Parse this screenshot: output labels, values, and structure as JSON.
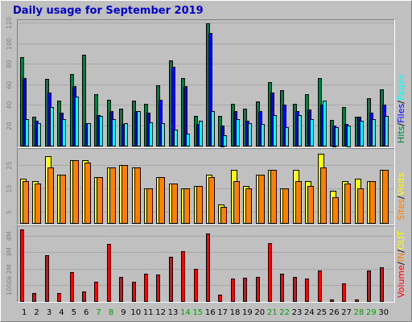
{
  "chart_data": {
    "title": "Daily usage for September 2019",
    "type": "bar",
    "days": [
      "1",
      "2",
      "3",
      "4",
      "5",
      "6",
      "7",
      "8",
      "9",
      "10",
      "11",
      "12",
      "13",
      "14",
      "15",
      "16",
      "17",
      "18",
      "19",
      "20",
      "21",
      "22",
      "23",
      "24",
      "25",
      "26",
      "27",
      "28",
      "29",
      "30"
    ],
    "weekend_days": [
      "7",
      "8",
      "14",
      "15",
      "21",
      "22",
      "28",
      "29"
    ],
    "panels": [
      {
        "id": "hits",
        "ylim": [
          0,
          120
        ],
        "yticks": [
          20,
          40,
          60,
          80,
          100,
          120
        ],
        "series": [
          {
            "name": "Hits",
            "color": "#008040",
            "values": [
              86,
              28,
              65,
              44,
              70,
              89,
              50,
              45,
              36,
              44,
              41,
              59,
              83,
              66,
              29,
              119,
              29,
              41,
              36,
              43,
              62,
              54,
              41,
              50,
              66,
              25,
              38,
              28,
              46,
              55
            ]
          },
          {
            "name": "Files",
            "color": "#0000ff",
            "values": [
              66,
              24,
              52,
              32,
              58,
              22,
              30,
              34,
              21,
              34,
              32,
              45,
              77,
              58,
              21,
              110,
              20,
              34,
              24,
              34,
              52,
              40,
              34,
              35,
              40,
              20,
              21,
              28,
              32,
              40
            ]
          },
          {
            "name": "Pages",
            "color": "#00ffff",
            "values": [
              26,
              22,
              38,
              26,
              48,
              22,
              29,
              26,
              22,
              34,
              23,
              22,
              16,
              12,
              24,
              34,
              10,
              26,
              22,
              21,
              30,
              18,
              30,
              26,
              44,
              18,
              20,
              24,
              26,
              29
            ]
          }
        ],
        "legend": [
          {
            "text": "Hits",
            "color": "#008040"
          },
          {
            "text": "Files",
            "color": "#0000ff"
          },
          {
            "text": "Pages",
            "color": "#00ffff"
          }
        ],
        "legend_sep": "/"
      },
      {
        "id": "visits",
        "ylim": [
          0,
          31
        ],
        "yticks": [
          5,
          15,
          25
        ],
        "series": [
          {
            "name": "Visits",
            "color": "#ffff00",
            "values": [
              19,
              18,
              29,
              21,
              27,
              27,
              20,
              24,
              25,
              24,
              15,
              20,
              17,
              15,
              16,
              21,
              8,
              23,
              16,
              21,
              23,
              15,
              23,
              18,
              30,
              14,
              18,
              19,
              18,
              23
            ]
          },
          {
            "name": "Sites",
            "color": "#ff8000",
            "values": [
              18,
              17,
              24,
              21,
              27,
              26,
              20,
              24,
              25,
              24,
              15,
              20,
              17,
              15,
              16,
              20,
              7,
              18,
              15,
              21,
              23,
              15,
              18,
              16,
              24,
              11,
              17,
              15,
              18,
              23
            ]
          }
        ],
        "legend": [
          {
            "text": "Sites",
            "color": "#ff8000"
          },
          {
            "text": "Visits",
            "color": "#ffff00"
          }
        ],
        "legend_sep": "/"
      },
      {
        "id": "volume",
        "ylim": [
          0,
          4.45
        ],
        "yticks": [
          1,
          2,
          3,
          4
        ],
        "ytick_labels": [
          "1000k",
          "2M",
          "3M",
          "4M"
        ],
        "series": [
          {
            "name": "Volume",
            "color": "#ff0000",
            "values": [
              4.4,
              0.5,
              2.8,
              0.5,
              1.8,
              0.6,
              1.2,
              3.5,
              1.5,
              1.2,
              1.7,
              1.65,
              2.7,
              3.05,
              2.0,
              4.15,
              0.4,
              1.4,
              1.45,
              1.5,
              3.55,
              1.7,
              1.5,
              1.4,
              1.9,
              0.1,
              1.1,
              0.1,
              1.9,
              2.1
            ]
          },
          {
            "name": "IN",
            "color": "#ff8000",
            "values": [
              0,
              0,
              0,
              0,
              0,
              0,
              0,
              0,
              0,
              0,
              0,
              0,
              0,
              0,
              0,
              0,
              0,
              0,
              0,
              0,
              0,
              0,
              0,
              0,
              0,
              0,
              0,
              0,
              0,
              0
            ]
          },
          {
            "name": "OUT",
            "color": "#ffff00",
            "values": [
              0,
              0,
              0,
              0,
              0,
              0,
              0,
              0,
              0,
              0,
              0,
              0,
              0,
              0,
              0,
              0,
              0,
              0,
              0,
              0,
              0,
              0,
              0,
              0,
              0,
              0,
              0,
              0,
              0,
              0
            ]
          }
        ],
        "legend": [
          {
            "text": "Volume",
            "color": "#ff0000"
          },
          {
            "text": "IN",
            "color": "#ff8000"
          },
          {
            "text": "OUT",
            "color": "#ffff00"
          }
        ],
        "legend_sep": "/"
      }
    ]
  }
}
